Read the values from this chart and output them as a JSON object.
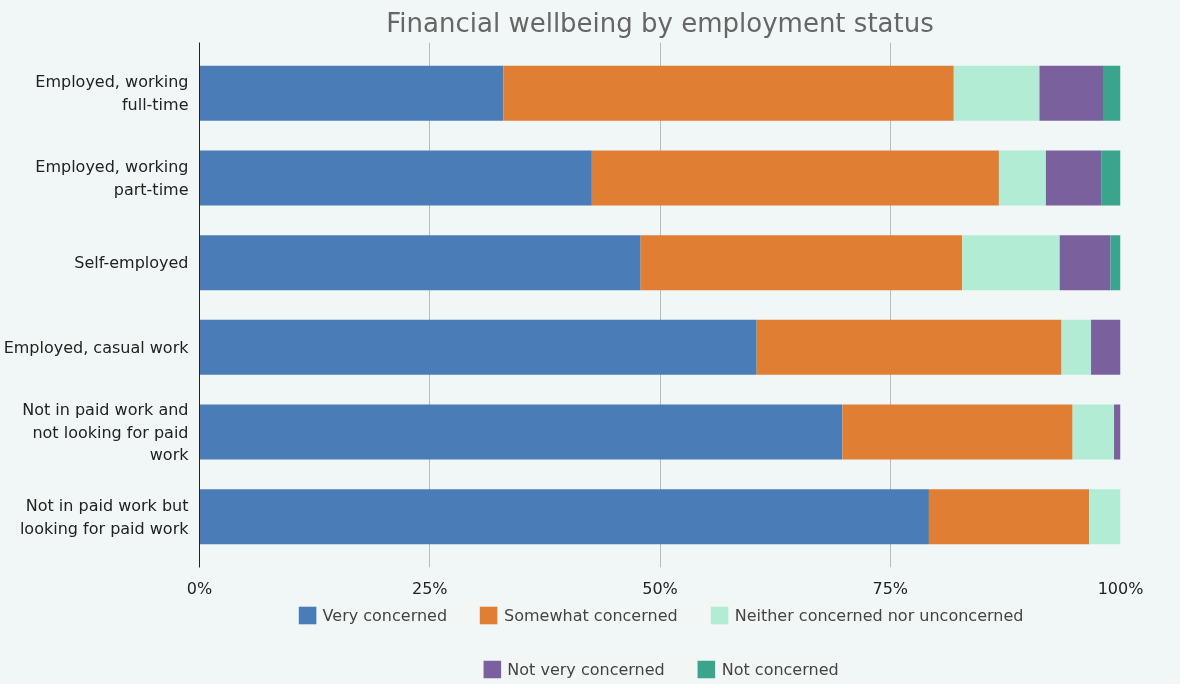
{
  "chart_data": {
    "type": "bar",
    "orientation": "horizontal",
    "stacked": true,
    "title": "Financial wellbeing by employment status",
    "categories": [
      "Employed, working full-time",
      "Employed, working part-time",
      "Self-employed",
      "Employed, casual work",
      "Not in paid work and not looking for paid work",
      "Not in paid work but looking for paid work"
    ],
    "series": [
      {
        "name": "Very concerned",
        "color": "#4a7db8",
        "values": [
          33.0,
          42.6,
          47.9,
          60.5,
          69.8,
          79.2
        ]
      },
      {
        "name": "Somewhat concerned",
        "color": "#e07f34",
        "values": [
          48.9,
          44.2,
          34.9,
          33.1,
          25.0,
          17.4
        ]
      },
      {
        "name": "Neither concerned nor unconcerned",
        "color": "#b2ecd4",
        "values": [
          9.3,
          5.1,
          10.6,
          3.2,
          4.5,
          3.4
        ]
      },
      {
        "name": "Not very concerned",
        "color": "#7a619e",
        "values": [
          6.9,
          6.0,
          5.5,
          3.2,
          0.7,
          0
        ]
      },
      {
        "name": "Not concerned",
        "color": "#3aa58c",
        "values": [
          1.9,
          2.1,
          1.1,
          0,
          0,
          0
        ]
      }
    ],
    "xlim": [
      0,
      100
    ],
    "xticks": [
      {
        "value": 0,
        "label": "0%"
      },
      {
        "value": 25,
        "label": "25%"
      },
      {
        "value": 50,
        "label": "50%"
      },
      {
        "value": 75,
        "label": "75%"
      },
      {
        "value": 100,
        "label": "100%"
      }
    ],
    "grid": "x",
    "legend": "bottom"
  }
}
